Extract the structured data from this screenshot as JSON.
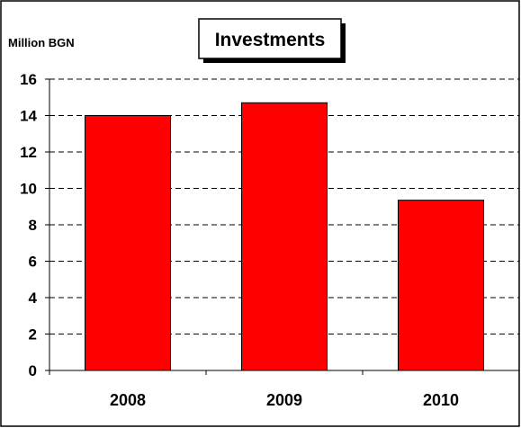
{
  "chart_data": {
    "type": "bar",
    "title": "Investments",
    "ylabel": "Million BGN",
    "xlabel": "",
    "categories": [
      "2008",
      "2009",
      "2010"
    ],
    "values": [
      14.0,
      14.7,
      9.35
    ],
    "ylim": [
      0,
      16
    ],
    "yticks": [
      0,
      2,
      4,
      6,
      8,
      10,
      12,
      14,
      16
    ],
    "grid": true,
    "bar_color": "#ff0000",
    "bar_outline_color": "#000000"
  }
}
